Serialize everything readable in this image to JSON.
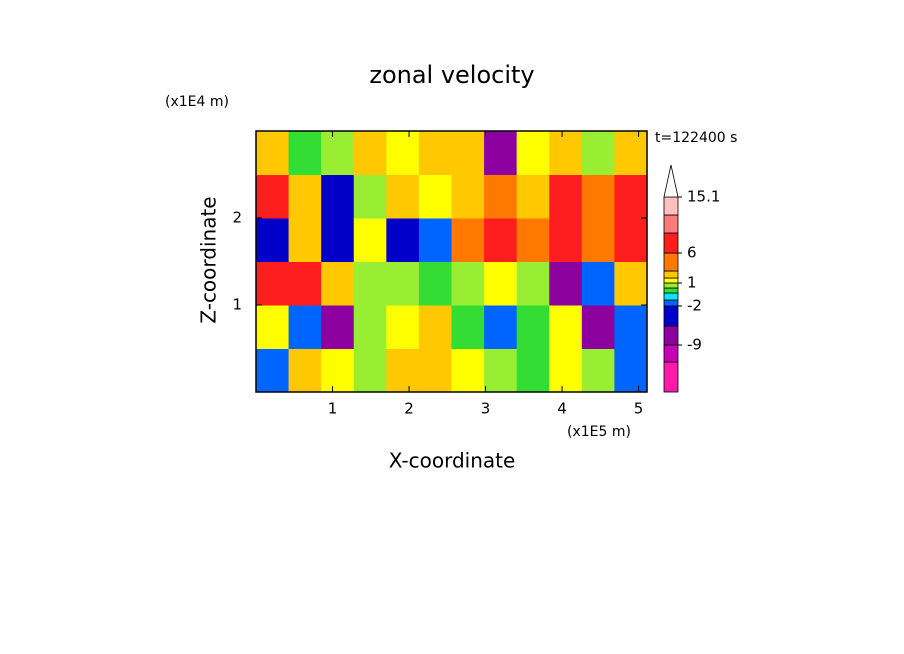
{
  "chart_data": {
    "type": "contour",
    "title": "zonal velocity",
    "x_label": "X-coordinate",
    "y_label": "Z-coordinate",
    "x_unit": "(x1E5 m)",
    "y_unit": "(x1E4 m)",
    "annotation": "t=122400 s",
    "xlim": [
      0,
      5.11
    ],
    "ylim": [
      0,
      3
    ],
    "xticks": [
      1,
      2,
      3,
      4,
      5
    ],
    "yticks": [
      1,
      2
    ],
    "z": [
      [
        -2,
        2,
        1,
        0,
        2,
        2,
        1,
        0,
        -1,
        1,
        0,
        -2
      ],
      [
        1,
        -2,
        -8,
        0,
        1,
        2,
        -1,
        -2,
        -1,
        1,
        -8,
        -2
      ],
      [
        6,
        8,
        3,
        0,
        0,
        -1,
        0,
        1,
        0,
        -6,
        -2,
        3
      ],
      [
        -5,
        3,
        -3,
        1,
        -3,
        -2,
        5,
        7,
        4,
        6,
        5,
        7
      ],
      [
        7,
        2,
        -5,
        0,
        2,
        1,
        3,
        5,
        3,
        7,
        4,
        6
      ],
      [
        3,
        -1,
        0,
        2,
        1,
        3,
        2,
        -6,
        1,
        3,
        0,
        2
      ]
    ],
    "colorbar": {
      "levels": [
        -16,
        -12,
        -9,
        -5,
        -2,
        -1.5,
        -1,
        0,
        1,
        2,
        4,
        6,
        9,
        12,
        15.1
      ],
      "colors": [
        "#ff1aaa",
        "#c800b4",
        "#8c00a0",
        "#0000c8",
        "#0064ff",
        "#00e6ff",
        "#33dd33",
        "#99ee33",
        "#ffff00",
        "#ffc800",
        "#ff7800",
        "#ff1e1e",
        "#ff7a7a",
        "#ffc0c0"
      ],
      "ticks": [
        -9,
        -2,
        1,
        6,
        15.1
      ]
    }
  }
}
